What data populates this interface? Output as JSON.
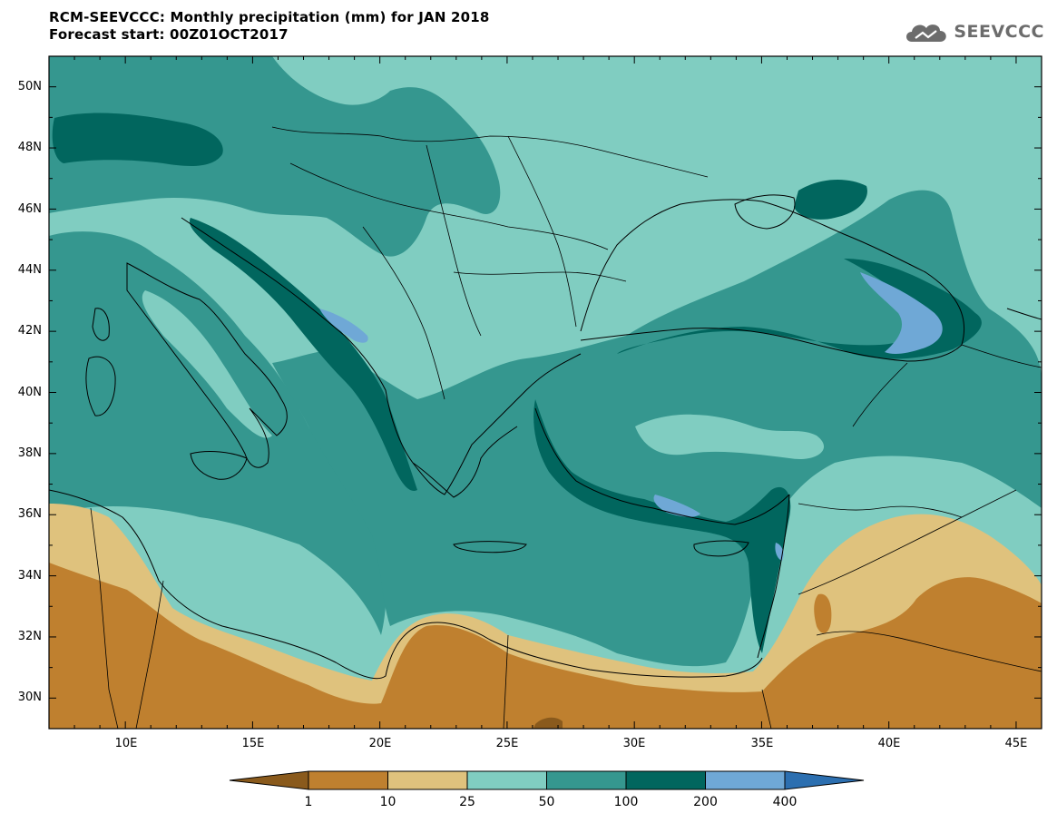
{
  "header": {
    "title": "RCM-SEEVCCC: Monthly precipitation (mm) for JAN 2018",
    "subtitle": "Forecast start: 00Z01OCT2017"
  },
  "logo": {
    "text": "SEEVCCC",
    "icon": "cloud-icon",
    "color": "#6c6c6c"
  },
  "map": {
    "lon_range": [
      7,
      46
    ],
    "lat_range": [
      29,
      51
    ],
    "lat_ticks": [
      "50N",
      "48N",
      "46N",
      "44N",
      "42N",
      "40N",
      "38N",
      "36N",
      "34N",
      "32N",
      "30N"
    ],
    "lon_ticks": [
      "10E",
      "15E",
      "20E",
      "25E",
      "30E",
      "35E",
      "40E",
      "45E"
    ]
  },
  "colorbar": {
    "levels": [
      "1",
      "10",
      "25",
      "50",
      "100",
      "200",
      "400"
    ],
    "colors": [
      "#8a5a1c",
      "#bf802f",
      "#dfc27d",
      "#80cdc1",
      "#35978f",
      "#01665e",
      "#6fa8d6",
      "#2c6fb0"
    ]
  }
}
